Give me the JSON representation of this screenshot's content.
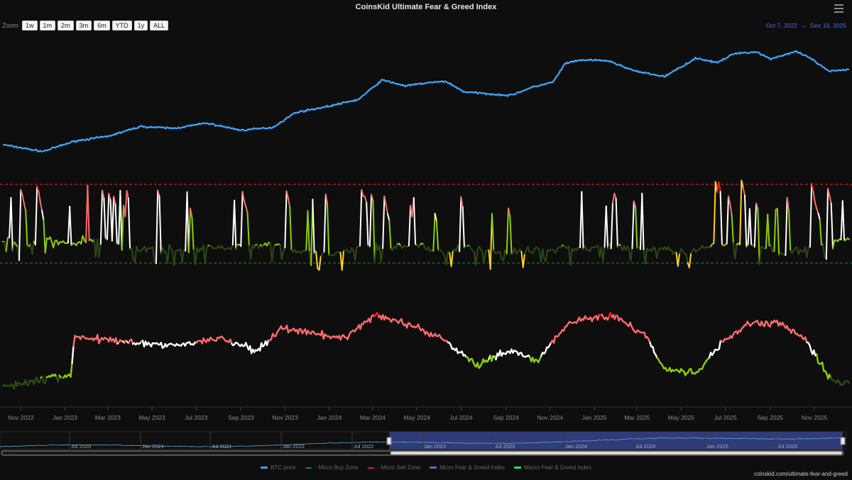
{
  "title": "CoinsKid Ultimate Fear & Greed Index",
  "zoom": {
    "label": "Zoom",
    "buttons": [
      "1w",
      "1m",
      "2m",
      "3m",
      "6m",
      "YTD",
      "1y",
      "ALL"
    ]
  },
  "range": {
    "from": "Oct 7, 2022",
    "arrow": "→",
    "to": "Dec 19, 2025"
  },
  "credit": "coinskid.com/ultimate-fear-and-greed",
  "legend": [
    {
      "label": "BTC price",
      "color": "#3ea6ff",
      "style": "solid"
    },
    {
      "label": "- Micro Buy Zone",
      "color": "#1f8f1f",
      "style": "dash"
    },
    {
      "label": "- Micro Sell Zone",
      "color": "#e02020",
      "style": "dash"
    },
    {
      "label": "Micro Fear & Greed Index",
      "color": "#5c6bd6",
      "style": "solid"
    },
    {
      "label": "Macro Fear & Greed Index",
      "color": "#2ee06a",
      "style": "solid"
    }
  ],
  "colors": {
    "background": "#0e0e0e",
    "btc": "#3ea6ff",
    "extreme_greed": "#ff1a1a",
    "greed": "#ff6b6b",
    "neutral": "#ffffff",
    "fear": "#8fce00",
    "extreme_fear": "#2c4a14",
    "outlier": "#ffd21f",
    "navigator_mask": "#3b4a99"
  },
  "chart_data": {
    "type": "line",
    "x_ticks": [
      "Nov 2022",
      "Jan 2023",
      "Mar 2023",
      "May 2023",
      "Jul 2023",
      "Sep 2023",
      "Nov 2023",
      "Jan 2024",
      "Mar 2024",
      "May 2024",
      "Jul 2024",
      "Sep 2024",
      "Nov 2024",
      "Jan 2025",
      "Mar 2025",
      "May 2025",
      "Jul 2025",
      "Sep 2025",
      "Nov 2025"
    ],
    "navigator_ticks": [
      "Jul 2020",
      "Jan 2021",
      "Jul 2021",
      "Jan 2022",
      "Jul 2022",
      "Jan 2023",
      "Jul 2023",
      "Jan 2024",
      "Jul 2024",
      "Jan 2025",
      "Jul 2025"
    ],
    "btc_price": {
      "name": "BTC price",
      "x": [
        "2022-10-07",
        "2022-12-01",
        "2023-01-15",
        "2023-03-01",
        "2023-04-15",
        "2023-06-01",
        "2023-07-15",
        "2023-09-01",
        "2023-10-15",
        "2023-11-15",
        "2023-12-31",
        "2024-02-10",
        "2024-03-14",
        "2024-04-15",
        "2024-05-15",
        "2024-06-10",
        "2024-07-05",
        "2024-08-05",
        "2024-09-06",
        "2024-10-10",
        "2024-11-05",
        "2024-11-22",
        "2024-12-17",
        "2025-01-20",
        "2025-02-28",
        "2025-04-08",
        "2025-05-22",
        "2025-06-20",
        "2025-07-14",
        "2025-08-14",
        "2025-09-01",
        "2025-10-06",
        "2025-10-25",
        "2025-11-21",
        "2025-12-19"
      ],
      "y": [
        19500,
        17000,
        21000,
        23000,
        28000,
        27000,
        30000,
        26000,
        27500,
        37000,
        42000,
        48000,
        71000,
        63000,
        67000,
        69000,
        56000,
        54000,
        52000,
        62000,
        68000,
        99000,
        106000,
        104000,
        84000,
        76000,
        110000,
        100000,
        121000,
        124000,
        108000,
        125000,
        111000,
        84000,
        88000
      ]
    },
    "micro_sell_zone": 90,
    "micro_buy_zone": 10,
    "micro_index_range": [
      0,
      100
    ],
    "macro_index_range": [
      0,
      100
    ],
    "micro_series_name": "Micro Fear & Greed Index",
    "macro_series_name": "Macro Fear & Greed Index"
  }
}
